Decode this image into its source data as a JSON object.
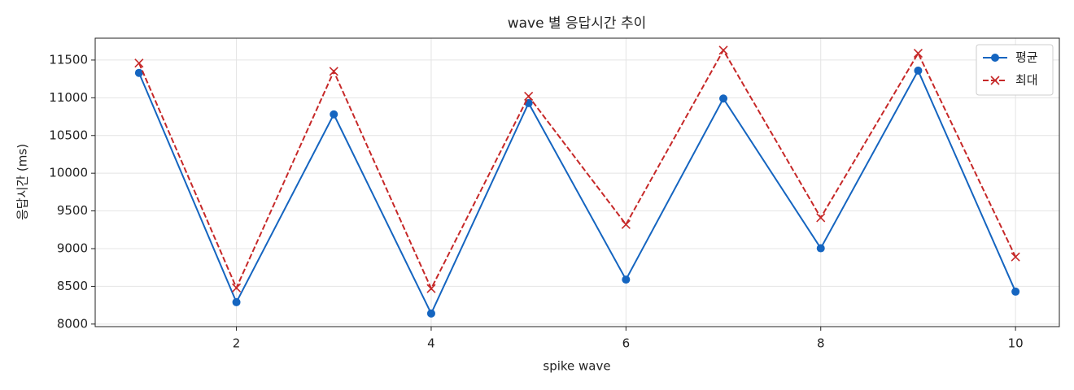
{
  "chart_data": {
    "type": "line",
    "title": "wave 별 응답시간 추이",
    "xlabel": "spike wave",
    "ylabel": "응답시간 (ms)",
    "x": [
      1,
      2,
      3,
      4,
      5,
      6,
      7,
      8,
      9,
      10
    ],
    "series": [
      {
        "name": "평균",
        "color": "#1565c0",
        "marker": "circle",
        "dash": false,
        "values": [
          11330,
          8290,
          10780,
          8140,
          10930,
          8590,
          10990,
          9005,
          11360,
          8430
        ]
      },
      {
        "name": "최대",
        "color": "#c62828",
        "marker": "x",
        "dash": true,
        "values": [
          11460,
          8480,
          11350,
          8470,
          11020,
          9320,
          11630,
          9410,
          11590,
          8890
        ]
      }
    ],
    "xlim": [
      0.55,
      10.45
    ],
    "ylim": [
      7966,
      11790
    ],
    "xticks": [
      2,
      4,
      6,
      8,
      10
    ],
    "yticks": [
      8000,
      8500,
      9000,
      9500,
      10000,
      10500,
      11000,
      11500
    ],
    "grid": true,
    "legend": "upper right"
  }
}
